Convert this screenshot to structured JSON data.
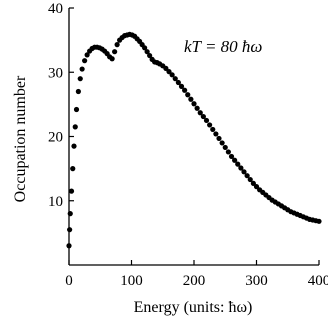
{
  "chart_data": {
    "type": "scatter",
    "title": "",
    "xlabel": "Energy (units: ħω)",
    "ylabel": "Occupation number",
    "annotation": "kT = 80 ħω",
    "xlim": [
      0,
      400
    ],
    "ylim": [
      0,
      40
    ],
    "xticks": [
      0,
      100,
      200,
      300,
      400
    ],
    "yticks": [
      10,
      20,
      30,
      40
    ],
    "grid": false,
    "legend": "none",
    "marker_color": "#000000",
    "series": [
      {
        "values": [
          [
            0,
            3.0
          ],
          [
            1,
            5.5
          ],
          [
            2,
            8.0
          ],
          [
            4,
            11.5
          ],
          [
            6,
            15.0
          ],
          [
            8,
            18.5
          ],
          [
            10,
            21.5
          ],
          [
            12,
            24.2
          ],
          [
            15,
            27.0
          ],
          [
            18,
            29.0
          ],
          [
            21,
            30.5
          ],
          [
            25,
            31.8
          ],
          [
            29,
            32.7
          ],
          [
            33,
            33.3
          ],
          [
            37,
            33.7
          ],
          [
            41,
            33.9
          ],
          [
            45,
            33.9
          ],
          [
            49,
            33.8
          ],
          [
            53,
            33.6
          ],
          [
            57,
            33.3
          ],
          [
            61,
            32.9
          ],
          [
            65,
            32.4
          ],
          [
            69,
            32.1
          ],
          [
            73,
            33.2
          ],
          [
            77,
            34.3
          ],
          [
            81,
            35.0
          ],
          [
            85,
            35.4
          ],
          [
            89,
            35.7
          ],
          [
            93,
            35.8
          ],
          [
            97,
            35.9
          ],
          [
            101,
            35.8
          ],
          [
            105,
            35.6
          ],
          [
            109,
            35.2
          ],
          [
            113,
            34.8
          ],
          [
            117,
            34.3
          ],
          [
            121,
            33.8
          ],
          [
            125,
            33.2
          ],
          [
            129,
            32.6
          ],
          [
            133,
            32.0
          ],
          [
            137,
            31.6
          ],
          [
            141,
            31.5
          ],
          [
            145,
            31.3
          ],
          [
            150,
            31.0
          ],
          [
            155,
            30.6
          ],
          [
            160,
            30.1
          ],
          [
            165,
            29.6
          ],
          [
            170,
            29.0
          ],
          [
            175,
            28.4
          ],
          [
            180,
            27.8
          ],
          [
            185,
            27.2
          ],
          [
            190,
            26.5
          ],
          [
            195,
            25.8
          ],
          [
            200,
            25.1
          ],
          [
            205,
            24.4
          ],
          [
            210,
            23.7
          ],
          [
            215,
            23.1
          ],
          [
            220,
            22.5
          ],
          [
            225,
            21.8
          ],
          [
            230,
            21.1
          ],
          [
            235,
            20.4
          ],
          [
            240,
            19.7
          ],
          [
            245,
            19.0
          ],
          [
            250,
            18.3
          ],
          [
            255,
            17.6
          ],
          [
            260,
            16.9
          ],
          [
            265,
            16.3
          ],
          [
            270,
            15.7
          ],
          [
            275,
            15.1
          ],
          [
            280,
            14.5
          ],
          [
            285,
            13.9
          ],
          [
            290,
            13.3
          ],
          [
            295,
            12.7
          ],
          [
            300,
            12.2
          ],
          [
            305,
            11.7
          ],
          [
            310,
            11.3
          ],
          [
            315,
            10.9
          ],
          [
            320,
            10.5
          ],
          [
            325,
            10.1
          ],
          [
            330,
            9.8
          ],
          [
            335,
            9.5
          ],
          [
            340,
            9.2
          ],
          [
            345,
            8.9
          ],
          [
            350,
            8.6
          ],
          [
            355,
            8.3
          ],
          [
            360,
            8.1
          ],
          [
            365,
            7.9
          ],
          [
            370,
            7.7
          ],
          [
            375,
            7.5
          ],
          [
            380,
            7.3
          ],
          [
            385,
            7.1
          ],
          [
            390,
            7.0
          ],
          [
            395,
            6.9
          ],
          [
            400,
            6.8
          ]
        ]
      }
    ]
  }
}
